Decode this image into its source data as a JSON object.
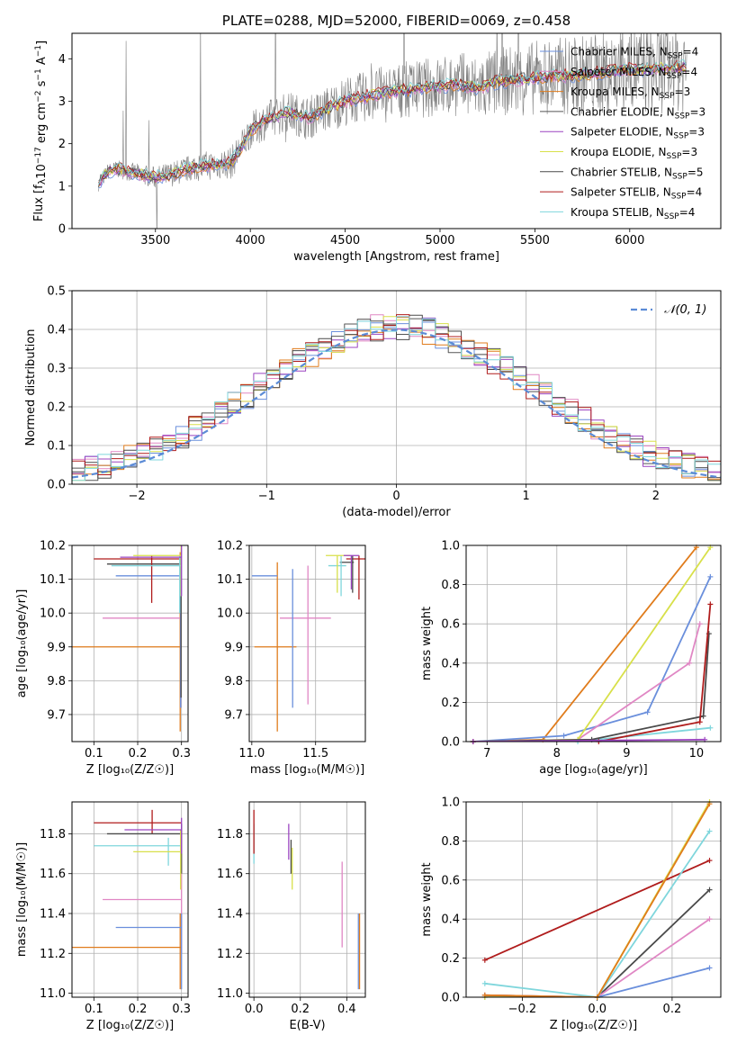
{
  "colors": {
    "chabrier_miles": "#6a8fdc",
    "salpeter_miles": "#e087c4",
    "kroupa_miles": "#e07c1c",
    "chabrier_elodie": "#555555",
    "salpeter_elodie": "#9b44c0",
    "kroupa_elodie": "#d8e04a",
    "chabrier_stelib": "#4a4a4a",
    "salpeter_stelib": "#b01c1c",
    "kroupa_stelib": "#7fd6dc",
    "data_spectrum": "#808080",
    "normal_curve": "#5b8bd6",
    "grid": "#b0b0b0"
  },
  "chart_data": [
    {
      "id": "spectrum",
      "type": "line",
      "title": "PLATE=0288, MJD=52000, FIBERID=0069, z=0.458",
      "xlabel": "wavelength [Angstrom, rest frame]",
      "ylabel_parts": [
        "Flux [f",
        "λ",
        "10",
        "−17",
        " erg cm",
        "−2",
        " s",
        "−1",
        " A",
        "−1",
        "]"
      ],
      "xlim": [
        3060,
        6480
      ],
      "ylim": [
        0,
        4.6
      ],
      "xticks": [
        "3500",
        "4000",
        "4500",
        "5000",
        "5500",
        "6000"
      ],
      "yticks": [
        "0",
        "1",
        "2",
        "3",
        "4"
      ],
      "legend_position": "right",
      "legend": [
        {
          "key": "chabrier_miles",
          "label": "Chabrier MILES, N",
          "sub": "SSP",
          "tail": "=4"
        },
        {
          "key": "salpeter_miles",
          "label": "Salpeter MILES, N",
          "sub": "SSP",
          "tail": "=4"
        },
        {
          "key": "kroupa_miles",
          "label": "Kroupa MILES, N",
          "sub": "SSP",
          "tail": "=3"
        },
        {
          "key": "chabrier_elodie",
          "label": "Chabrier ELODIE, N",
          "sub": "SSP",
          "tail": "=3"
        },
        {
          "key": "salpeter_elodie",
          "label": "Salpeter ELODIE, N",
          "sub": "SSP",
          "tail": "=3"
        },
        {
          "key": "kroupa_elodie",
          "label": "Kroupa ELODIE, N",
          "sub": "SSP",
          "tail": "=3"
        },
        {
          "key": "chabrier_stelib",
          "label": "Chabrier STELIB, N",
          "sub": "SSP",
          "tail": "=5"
        },
        {
          "key": "salpeter_stelib",
          "label": "Salpeter STELIB, N",
          "sub": "SSP",
          "tail": "=4"
        },
        {
          "key": "kroupa_stelib",
          "label": "Kroupa STELIB, N",
          "sub": "SSP",
          "tail": "=4"
        }
      ],
      "model_continuum": {
        "x": [
          3200,
          3250,
          3300,
          3400,
          3500,
          3600,
          3700,
          3800,
          3900,
          3950,
          4000,
          4100,
          4200,
          4300,
          4400,
          4500,
          4600,
          4700,
          4800,
          4900,
          5000,
          5100,
          5200,
          5300,
          5400,
          5500,
          5600,
          5700,
          5800,
          5900,
          6000,
          6100,
          6200,
          6300
        ],
        "y": [
          1.05,
          1.35,
          1.4,
          1.3,
          1.2,
          1.3,
          1.45,
          1.5,
          1.55,
          1.9,
          2.3,
          2.6,
          2.75,
          2.6,
          2.8,
          3.0,
          3.1,
          3.2,
          3.25,
          3.3,
          3.35,
          3.4,
          3.3,
          3.45,
          3.5,
          3.55,
          3.6,
          3.6,
          3.65,
          3.7,
          3.75,
          3.75,
          3.8,
          3.8
        ]
      }
    },
    {
      "id": "residuals",
      "type": "line",
      "xlabel": "(data-model)/error",
      "ylabel": "Normed distribution",
      "xlim": [
        -2.5,
        2.5
      ],
      "ylim": [
        0,
        0.5
      ],
      "xticks": [
        "−2",
        "−1",
        "0",
        "1",
        "2"
      ],
      "yticks": [
        "0.0",
        "0.1",
        "0.2",
        "0.3",
        "0.4",
        "0.5"
      ],
      "legend_label": "𝒩(0, 1)",
      "bin_edges": [
        -2.5,
        -2.4,
        -2.3,
        -2.2,
        -2.1,
        -2.0,
        -1.9,
        -1.8,
        -1.7,
        -1.6,
        -1.5,
        -1.4,
        -1.3,
        -1.2,
        -1.1,
        -1.0,
        -0.9,
        -0.8,
        -0.7,
        -0.6,
        -0.5,
        -0.4,
        -0.3,
        -0.2,
        -0.1,
        0.0,
        0.1,
        0.2,
        0.3,
        0.4,
        0.5,
        0.6,
        0.7,
        0.8,
        0.9,
        1.0,
        1.1,
        1.2,
        1.3,
        1.4,
        1.5,
        1.6,
        1.7,
        1.8,
        1.9,
        2.0,
        2.1,
        2.2,
        2.3,
        2.4,
        2.5
      ],
      "normal_curve": {
        "mean": 0,
        "sigma": 1
      }
    },
    {
      "id": "age_vs_Z",
      "type": "scatter",
      "xlabel": "Z [log₁₀(Z/Z☉)]",
      "ylabel": "age  [log₁₀(age/yr)]",
      "xlim": [
        0.05,
        0.315
      ],
      "ylim": [
        9.62,
        10.2
      ],
      "xticks": [
        "0.1",
        "0.2",
        "0.3"
      ],
      "yticks": [
        "9.7",
        "9.8",
        "9.9",
        "10.0",
        "10.1",
        "10.2"
      ]
    },
    {
      "id": "age_vs_mass",
      "type": "scatter",
      "xlabel": "mass [log₁₀(M/M☉)]",
      "xlim": [
        10.98,
        11.89
      ],
      "ylim": [
        9.62,
        10.2
      ],
      "xticks": [
        "11.0",
        "11.5"
      ],
      "yticks": [
        "9.7",
        "9.8",
        "9.9",
        "10.0",
        "10.1",
        "10.2"
      ]
    },
    {
      "id": "mass_weight_vs_age",
      "type": "line",
      "xlabel": "age  [log₁₀(age/yr)]",
      "ylabel": "mass weight",
      "xlim": [
        6.7,
        10.35
      ],
      "ylim": [
        0,
        1.0
      ],
      "xticks": [
        "7",
        "8",
        "9",
        "10"
      ],
      "yticks": [
        "0.0",
        "0.2",
        "0.4",
        "0.6",
        "0.8",
        "1.0"
      ],
      "series": [
        {
          "key": "kroupa_miles",
          "x": [
            6.8,
            7.8,
            10.0
          ],
          "y": [
            0.0,
            0.01,
            0.99
          ]
        },
        {
          "key": "chabrier_miles",
          "x": [
            6.8,
            8.1,
            9.3,
            10.2
          ],
          "y": [
            0.0,
            0.03,
            0.15,
            0.84
          ]
        },
        {
          "key": "salpeter_miles",
          "x": [
            6.8,
            8.3,
            9.9,
            10.05
          ],
          "y": [
            0.0,
            0.01,
            0.4,
            0.6
          ]
        },
        {
          "key": "kroupa_elodie",
          "x": [
            6.8,
            8.3,
            10.2
          ],
          "y": [
            0.0,
            0.01,
            0.99
          ]
        },
        {
          "key": "kroupa_stelib",
          "x": [
            6.8,
            8.3,
            10.2
          ],
          "y": [
            0.0,
            0.0,
            0.07
          ]
        },
        {
          "key": "chabrier_stelib",
          "x": [
            6.8,
            8.5,
            10.1,
            10.18
          ],
          "y": [
            0.0,
            0.01,
            0.13,
            0.55
          ]
        },
        {
          "key": "salpeter_stelib",
          "x": [
            6.8,
            8.6,
            10.05,
            10.2
          ],
          "y": [
            0.0,
            0.0,
            0.1,
            0.7
          ]
        },
        {
          "key": "salpeter_elodie",
          "x": [
            6.8,
            10.12
          ],
          "y": [
            0.0,
            0.01
          ]
        }
      ]
    },
    {
      "id": "mass_vs_Z",
      "type": "scatter",
      "xlabel": "Z [log₁₀(Z/Z☉)]",
      "ylabel": "mass [log₁₀(M/M☉)]",
      "xlim": [
        0.05,
        0.315
      ],
      "ylim": [
        10.98,
        11.96
      ],
      "xticks": [
        "0.1",
        "0.2",
        "0.3"
      ],
      "yticks": [
        "11.0",
        "11.2",
        "11.4",
        "11.6",
        "11.8"
      ]
    },
    {
      "id": "mass_vs_ebv",
      "type": "scatter",
      "xlabel": "E(B-V)",
      "xlim": [
        -0.02,
        0.48
      ],
      "ylim": [
        10.98,
        11.96
      ],
      "xticks": [
        "0.0",
        "0.2",
        "0.4"
      ],
      "yticks": [
        "11.0",
        "11.2",
        "11.4",
        "11.6",
        "11.8"
      ],
      "points": [
        {
          "key": "kroupa_stelib",
          "x": 0.0,
          "y": [
            11.65,
            11.85
          ]
        },
        {
          "key": "salpeter_stelib",
          "x": 0.0,
          "y": [
            11.7,
            11.92
          ]
        },
        {
          "key": "salpeter_elodie",
          "x": 0.15,
          "y": [
            11.67,
            11.85
          ]
        },
        {
          "key": "chabrier_stelib",
          "x": 0.16,
          "y": [
            11.6,
            11.77
          ]
        },
        {
          "key": "kroupa_elodie",
          "x": 0.165,
          "y": [
            11.52,
            11.73
          ]
        },
        {
          "key": "salpeter_miles",
          "x": 0.38,
          "y": [
            11.23,
            11.66
          ]
        },
        {
          "key": "chabrier_miles",
          "x": 0.45,
          "y": [
            11.02,
            11.4
          ]
        },
        {
          "key": "kroupa_miles",
          "x": 0.455,
          "y": [
            11.02,
            11.4
          ]
        }
      ]
    },
    {
      "id": "mass_weight_vs_Z",
      "type": "line",
      "xlabel": "Z [log₁₀(Z/Z☉)]",
      "ylabel": "mass weight",
      "xlim": [
        -0.35,
        0.33
      ],
      "ylim": [
        0,
        1.0
      ],
      "xticks": [
        "−0.2",
        "0.0",
        "0.2"
      ],
      "yticks": [
        "0.0",
        "0.2",
        "0.4",
        "0.6",
        "0.8",
        "1.0"
      ],
      "series": [
        {
          "key": "salpeter_stelib",
          "x": [
            -0.3,
            0.3
          ],
          "y": [
            0.19,
            0.7
          ]
        },
        {
          "key": "chabrier_stelib",
          "x": [
            -0.3,
            0.0,
            0.3
          ],
          "y": [
            0.01,
            0.0,
            0.55
          ]
        },
        {
          "key": "salpeter_miles",
          "x": [
            -0.3,
            0.0,
            0.3
          ],
          "y": [
            0.01,
            0.0,
            0.4
          ]
        },
        {
          "key": "chabrier_miles",
          "x": [
            -0.3,
            0.0,
            0.3
          ],
          "y": [
            0.0,
            0.0,
            0.15
          ]
        },
        {
          "key": "kroupa_stelib",
          "x": [
            -0.3,
            0.0,
            0.3
          ],
          "y": [
            0.07,
            0.0,
            0.85
          ]
        },
        {
          "key": "kroupa_elodie",
          "x": [
            -0.3,
            0.0,
            0.3
          ],
          "y": [
            0.0,
            0.0,
            1.0
          ]
        },
        {
          "key": "kroupa_miles",
          "x": [
            -0.3,
            0.0,
            0.3
          ],
          "y": [
            0.01,
            0.0,
            0.99
          ]
        }
      ]
    }
  ]
}
